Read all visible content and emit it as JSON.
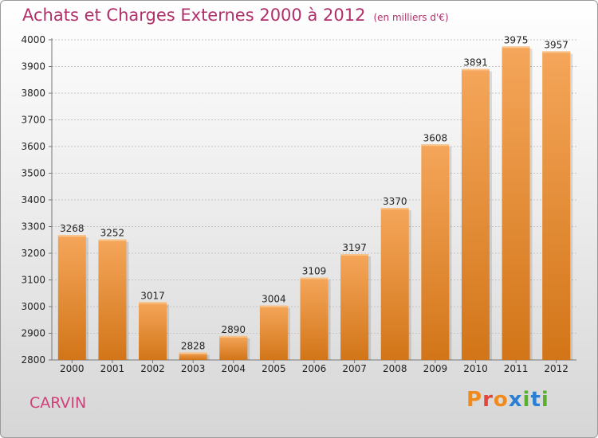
{
  "header": {
    "title": "Achats et Charges Externes 2000 à 2012",
    "unit": "(en milliers d'€)"
  },
  "footer": {
    "city": "CARVIN",
    "logo_text": "Proxiti"
  },
  "colors": {
    "title": "#b0306a",
    "city": "#d0407a",
    "bar_light": "#f5a65a",
    "bar_dark": "#d27518",
    "logo": [
      "#f08a1c",
      "#e2453b",
      "#f08a1c",
      "#2a7fd4",
      "#58b02d",
      "#2a7fd4",
      "#58b02d"
    ]
  },
  "chart_data": {
    "type": "bar",
    "title": "Achats et Charges Externes 2000 à 2012",
    "subtitle": "(en milliers d'€)",
    "categories": [
      "2000",
      "2001",
      "2002",
      "2003",
      "2004",
      "2005",
      "2006",
      "2007",
      "2008",
      "2009",
      "2010",
      "2011",
      "2012"
    ],
    "values": [
      3268,
      3252,
      3017,
      2828,
      2890,
      3004,
      3109,
      3197,
      3370,
      3608,
      3891,
      3975,
      3957
    ],
    "ylim": [
      2800,
      4000
    ],
    "yticks": [
      2800,
      2900,
      3000,
      3100,
      3200,
      3300,
      3400,
      3500,
      3600,
      3700,
      3800,
      3900,
      4000
    ],
    "grid": true,
    "legend": "none"
  }
}
